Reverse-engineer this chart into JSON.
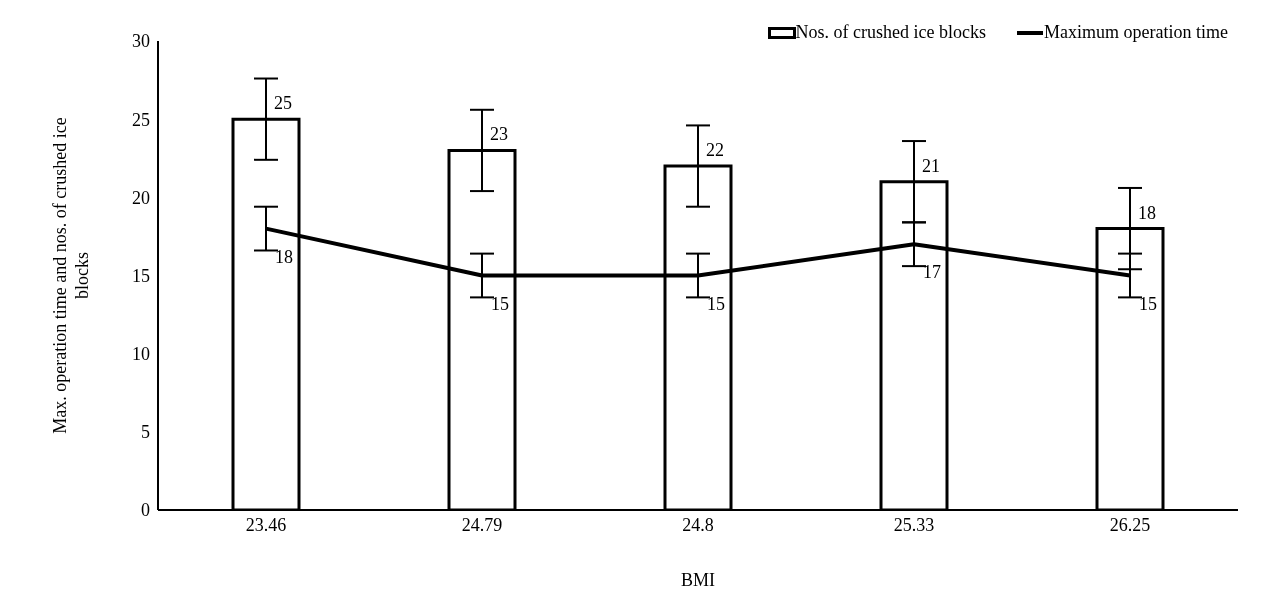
{
  "chart_data": {
    "type": "bar",
    "xlabel": "BMI",
    "ylabel": "Max. operation time and nos. of crushed ice blocks",
    "categories": [
      "23.46",
      "24.79",
      "24.8",
      "25.33",
      "26.25"
    ],
    "series": [
      {
        "name": "Nos. of crushed ice blocks",
        "color": "#ffffff",
        "values": [
          25,
          23,
          22,
          21,
          18
        ],
        "errors": [
          2.6,
          2.6,
          2.6,
          2.6,
          2.6
        ]
      },
      {
        "name": "Maximum operation time",
        "type": "line",
        "color": "#000000",
        "values": [
          18,
          15,
          15,
          17,
          15
        ],
        "errors": [
          1.4,
          1.4,
          1.4,
          1.4,
          1.4
        ]
      }
    ],
    "ylim": [
      0,
      30
    ],
    "yticks": [
      0,
      5,
      10,
      15,
      20,
      25,
      30
    ],
    "grid": false,
    "legend": "top right",
    "data_labels": true,
    "marker": "none",
    "line_style": "solid"
  }
}
